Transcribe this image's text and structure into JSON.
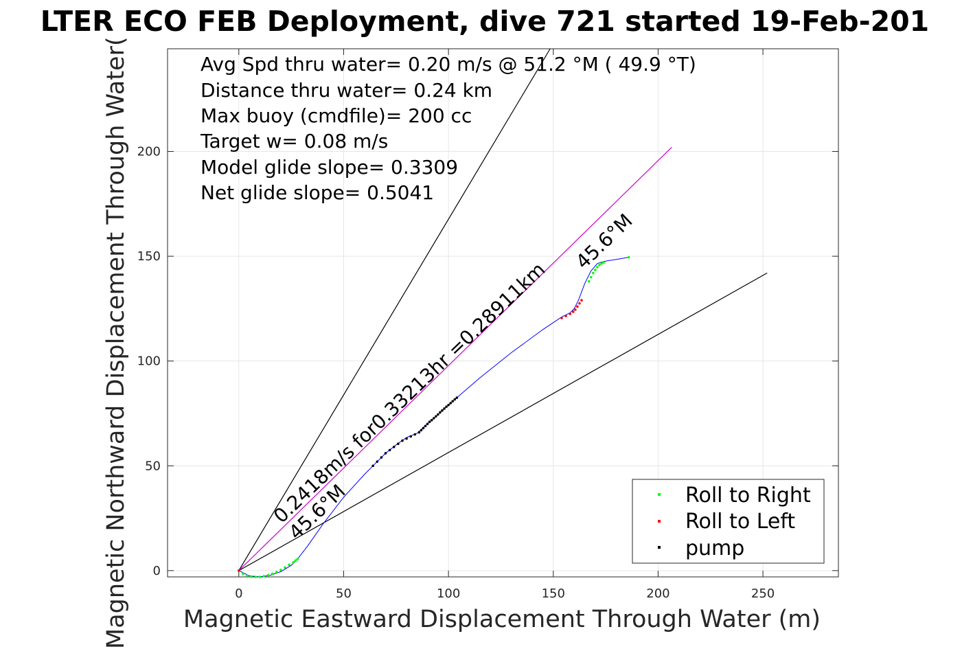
{
  "chart_data": {
    "type": "scatter",
    "title": "LTER ECO FEB Deployment, dive 721 started 19-Feb-201",
    "xlabel": "Magnetic Eastward Displacement Through Water (m)",
    "ylabel": "Magnetic Northward Displacement Through Water(",
    "xlim": [
      -34,
      286
    ],
    "ylim": [
      -3,
      249
    ],
    "xticks": [
      0,
      50,
      100,
      150,
      200,
      250
    ],
    "yticks": [
      0,
      50,
      100,
      150,
      200
    ],
    "grid": true,
    "legend_position": "bottom-right",
    "annotations": [
      "Avg Spd thru water=  0.20 m/s @  51.2 °M ( 49.9 °T)",
      "Distance thru water=  0.24 km",
      "Max buoy (cmdfile)= 200 cc",
      "Target w= 0.08 m/s",
      "Model glide slope= 0.3309",
      "Net glide slope= 0.5041"
    ],
    "line_labels": {
      "speed": "0.2418m/s for0.33213hr =0.28911km",
      "heading_start": "45.6°M",
      "heading_end": "45.6°M"
    },
    "reference_lines": [
      {
        "name": "",
        "color": "#000000",
        "x": [
          0,
          148.5
        ],
        "y": [
          0,
          249
        ]
      },
      {
        "name": "",
        "color": "#000000",
        "x": [
          0,
          252
        ],
        "y": [
          0,
          142
        ]
      },
      {
        "name": "",
        "color": "#cc00cc",
        "x": [
          0,
          206.5
        ],
        "y": [
          0,
          202
        ]
      }
    ],
    "track": {
      "color": "#0000ff",
      "x": [
        0,
        5,
        10,
        15,
        20,
        25,
        28,
        33,
        40,
        50,
        60,
        64,
        70,
        75,
        80,
        85,
        90,
        95,
        100,
        104,
        115,
        130,
        145,
        154,
        158,
        160,
        162,
        165,
        168,
        171,
        174,
        180,
        186
      ],
      "y": [
        0,
        -2.5,
        -3,
        -2.2,
        -0.5,
        2.5,
        5.5,
        12,
        22,
        35,
        46,
        50,
        56,
        60,
        63.5,
        65.5,
        70,
        74.5,
        79,
        82.5,
        92,
        104,
        115,
        121,
        123,
        125,
        129,
        137,
        143,
        146.5,
        147.5,
        148.5,
        149.5
      ]
    },
    "series": [
      {
        "name": "Roll to Right",
        "color": "#00ff00",
        "x": [
          0,
          2,
          4,
          6,
          8,
          10,
          12,
          14,
          16,
          18,
          20,
          22,
          24,
          26,
          27,
          28,
          167,
          168,
          169,
          170,
          171,
          172,
          173,
          174,
          186
        ],
        "y": [
          0,
          -1.5,
          -2.4,
          -2.9,
          -3,
          -3,
          -2.7,
          -2.2,
          -1.5,
          -0.7,
          0.3,
          1.5,
          2.8,
          4,
          4.8,
          5.5,
          138,
          140,
          142,
          143.5,
          144.8,
          145.8,
          146.5,
          147,
          149.5
        ]
      },
      {
        "name": "Roll to Left",
        "color": "#ff0000",
        "x": [
          0,
          154,
          156,
          158,
          159.5,
          160.5,
          161.5,
          162.5,
          163.5
        ],
        "y": [
          0,
          120.5,
          121.5,
          122.5,
          123.5,
          124.5,
          126,
          127.5,
          129
        ]
      },
      {
        "name": "pump",
        "color": "#000000",
        "x": [
          64,
          66,
          68,
          70,
          72,
          74,
          76,
          78,
          80,
          82,
          84,
          86,
          87,
          88,
          89,
          90,
          91,
          92,
          93,
          94,
          95,
          96,
          97,
          98,
          99,
          100,
          101,
          102,
          103,
          104
        ],
        "y": [
          50,
          52,
          54,
          56,
          57.5,
          59,
          60.5,
          62,
          63,
          64,
          65,
          66,
          67,
          68,
          69,
          70,
          71,
          71.8,
          72.7,
          73.6,
          74.5,
          75.5,
          76.4,
          77.3,
          78.2,
          79,
          79.9,
          80.8,
          81.7,
          82.5
        ]
      }
    ]
  }
}
